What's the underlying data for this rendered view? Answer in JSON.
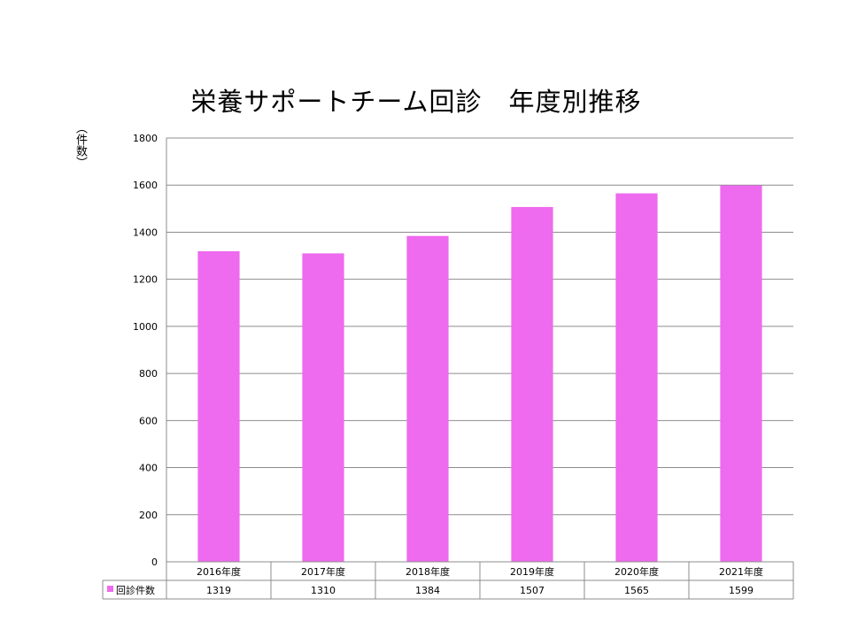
{
  "chart_data": {
    "type": "bar",
    "title": "栄養サポートチーム回診　年度別推移",
    "ylabel": "（件数）",
    "xlabel": "",
    "categories": [
      "2016年度",
      "2017年度",
      "2018年度",
      "2019年度",
      "2020年度",
      "2021年度"
    ],
    "series": [
      {
        "name": "回診件数",
        "values": [
          1319,
          1310,
          1384,
          1507,
          1565,
          1599
        ],
        "color": "#ee6aee"
      }
    ],
    "ylim": [
      0,
      1800
    ],
    "yticks": [
      0,
      200,
      400,
      600,
      800,
      1000,
      1200,
      1400,
      1600,
      1800
    ],
    "grid": true,
    "legend": "data-table-left",
    "data_table": true
  }
}
